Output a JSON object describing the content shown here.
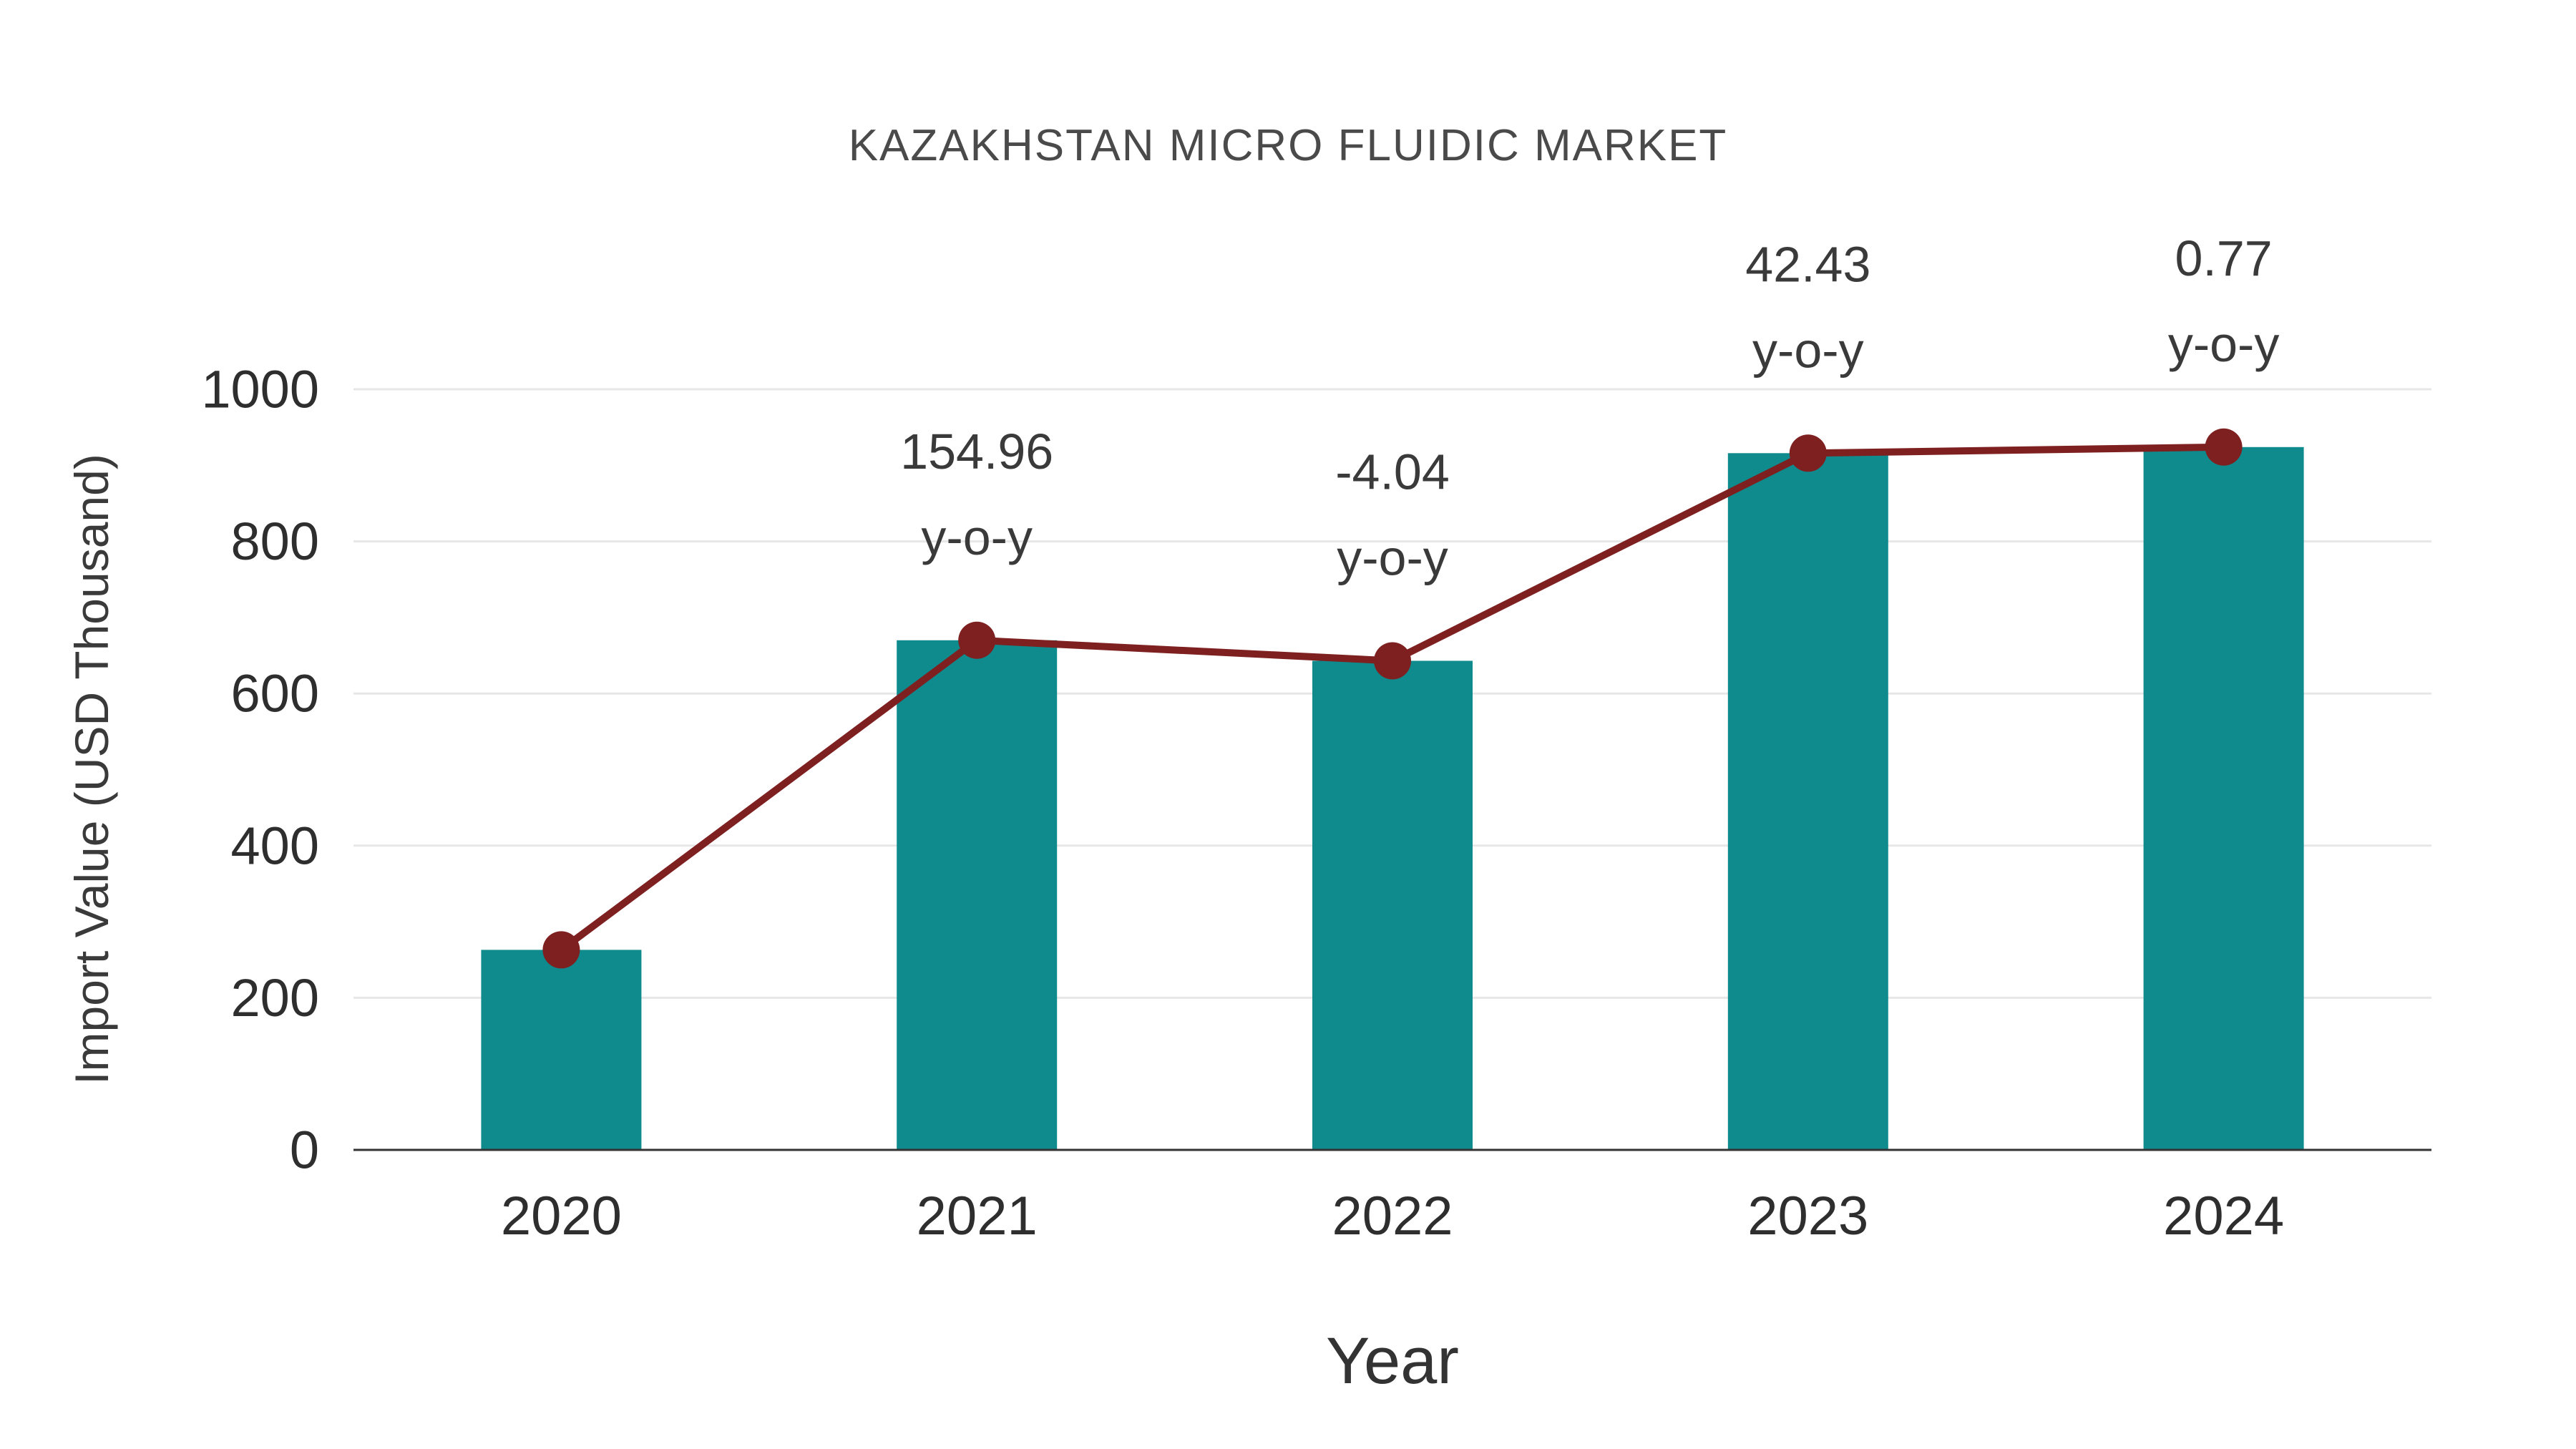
{
  "chart": {
    "title": "KAZAKHSTAN MICRO FLUIDIC MARKET",
    "xlabel": "Year",
    "ylabel": "Import Value (USD Thousand)"
  },
  "chart_data": {
    "type": "bar",
    "subtype": "bar-with-line-overlay",
    "title": "KAZAKHSTAN MICRO FLUIDIC MARKET",
    "xlabel": "Year",
    "ylabel": "Import Value (USD Thousand)",
    "categories": [
      "2020",
      "2021",
      "2022",
      "2023",
      "2024"
    ],
    "series": [
      {
        "name": "Import Value",
        "type": "bar",
        "values": [
          263,
          670,
          643,
          916,
          924
        ]
      },
      {
        "name": "Import Value trend",
        "type": "line",
        "values": [
          263,
          670,
          643,
          916,
          924
        ]
      }
    ],
    "annotations": [
      {
        "category": "2021",
        "value": "154.96",
        "label": "y-o-y"
      },
      {
        "category": "2022",
        "value": "-4.04",
        "label": "y-o-y"
      },
      {
        "category": "2023",
        "value": "42.43",
        "label": "y-o-y"
      },
      {
        "category": "2024",
        "value": "0.77",
        "label": "y-o-y"
      }
    ],
    "yticks": [
      0,
      200,
      400,
      600,
      800,
      1000
    ],
    "ylim": [
      0,
      1000
    ],
    "grid": "horizontal",
    "legend": "none",
    "colors": {
      "bar": "#0f8b8d",
      "line": "#7e2020",
      "marker": "#7e2020",
      "text": "#3a3a3a",
      "tick_text": "#2e2e2e",
      "grid": "#e7e7e7",
      "axis": "#333333",
      "background": "#ffffff"
    }
  }
}
